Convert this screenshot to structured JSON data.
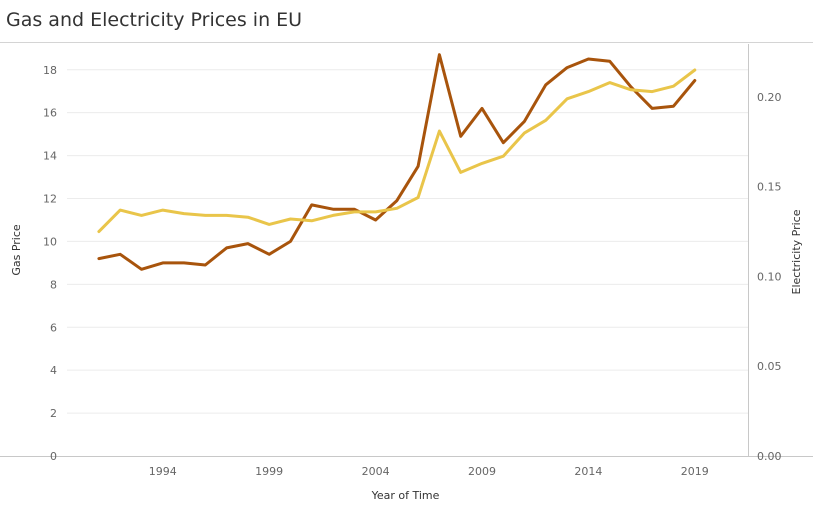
{
  "title": "Gas and Electricity Prices in EU",
  "chart_data": {
    "type": "line",
    "title": "Gas and Electricity Prices in EU",
    "xlabel": "Year of Time",
    "ylabel": "Gas Price",
    "y2label": "Electricity Price",
    "x_ticks": [
      "1994",
      "1999",
      "2004",
      "2009",
      "2014",
      "2019"
    ],
    "y_ticks": [
      "0",
      "2",
      "4",
      "6",
      "8",
      "10",
      "12",
      "14",
      "16",
      "18"
    ],
    "y2_ticks": [
      "0.00",
      "0.05",
      "0.10",
      "0.15",
      "0.20"
    ],
    "xlim": [
      1989.5,
      2021.5
    ],
    "ylim": [
      0,
      19.2
    ],
    "y2lim": [
      0,
      0.2295
    ],
    "grid": "horizontal",
    "x": [
      1991,
      1992,
      1993,
      1994,
      1995,
      1996,
      1997,
      1998,
      1999,
      2000,
      2001,
      2002,
      2003,
      2004,
      2005,
      2006,
      2007,
      2008,
      2009,
      2010,
      2011,
      2012,
      2013,
      2014,
      2015,
      2016,
      2017,
      2018,
      2019
    ],
    "series": [
      {
        "axis": "left",
        "color": "#a8540c",
        "values": [
          9.2,
          9.4,
          8.7,
          9.0,
          9.0,
          8.9,
          9.7,
          9.9,
          9.4,
          10.0,
          11.7,
          11.5,
          11.5,
          11.0,
          11.9,
          13.5,
          18.7,
          14.9,
          16.2,
          14.6,
          15.6,
          17.3,
          18.1,
          18.5,
          18.4,
          17.2,
          16.2,
          16.3,
          17.5
        ]
      },
      {
        "axis": "right",
        "color": "#e9c54a",
        "values": [
          0.125,
          0.137,
          0.134,
          0.137,
          0.135,
          0.134,
          0.134,
          0.133,
          0.129,
          0.132,
          0.131,
          0.134,
          0.136,
          0.136,
          0.138,
          0.144,
          0.181,
          0.158,
          0.163,
          0.167,
          0.18,
          0.187,
          0.199,
          0.203,
          0.208,
          0.204,
          0.203,
          0.206,
          0.215
        ]
      }
    ]
  }
}
